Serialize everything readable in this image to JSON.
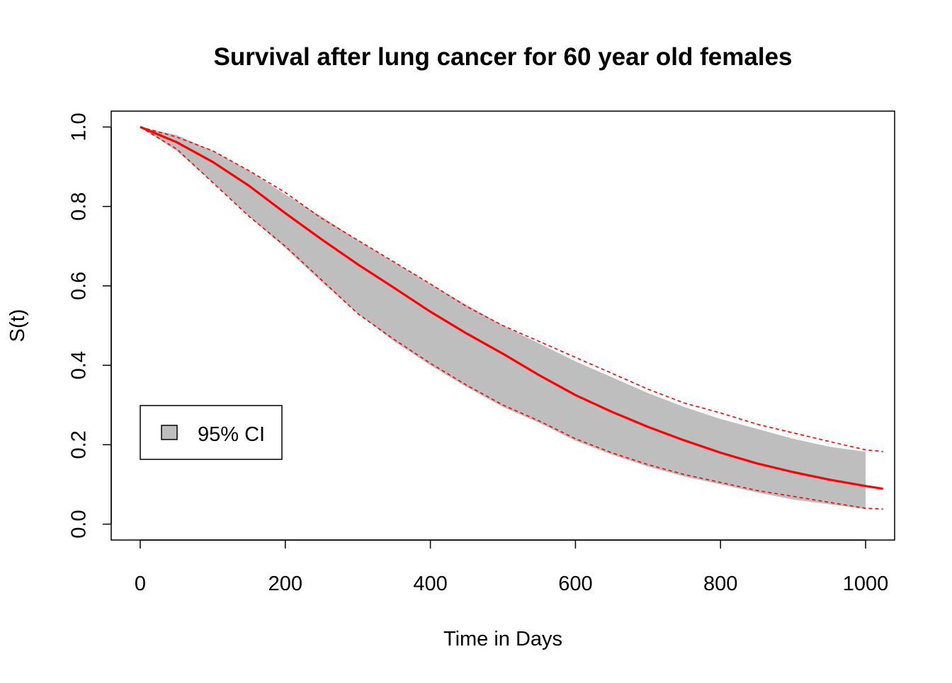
{
  "colors": {
    "curve": "#FF0000",
    "ci_fill": "#BEBEBE",
    "ci_lines": "#FF0000",
    "axis": "#000000",
    "background": "#FFFFFF"
  },
  "chart_data": {
    "type": "line",
    "title": "Survival after lung cancer for 60 year old females",
    "xlabel": "Time in Days",
    "ylabel": "S(t)",
    "xlim": [
      -40,
      1040
    ],
    "ylim": [
      -0.04,
      1.04
    ],
    "xticks": [
      0,
      200,
      400,
      600,
      800,
      1000
    ],
    "xtick_labels": [
      "0",
      "200",
      "400",
      "600",
      "800",
      "1000"
    ],
    "yticks": [
      0.0,
      0.2,
      0.4,
      0.6,
      0.8,
      1.0
    ],
    "ytick_labels": [
      "0.0",
      "0.2",
      "0.4",
      "0.6",
      "0.8",
      "1.0"
    ],
    "grid": false,
    "legend": {
      "position": "bottom-left",
      "entries": [
        {
          "label": "95% CI",
          "symbol": "filled-box"
        }
      ]
    },
    "x": [
      0,
      50,
      100,
      150,
      200,
      250,
      300,
      350,
      400,
      450,
      500,
      550,
      600,
      650,
      700,
      750,
      800,
      850,
      900,
      950,
      1000,
      1024
    ],
    "series": [
      {
        "name": "",
        "style": "solid",
        "values": [
          1.0,
          0.962,
          0.912,
          0.852,
          0.783,
          0.717,
          0.654,
          0.595,
          0.535,
          0.48,
          0.429,
          0.375,
          0.325,
          0.283,
          0.245,
          0.211,
          0.18,
          0.153,
          0.131,
          0.112,
          0.096,
          0.089
        ]
      },
      {
        "name": "",
        "style": "dashed",
        "values": [
          1.0,
          0.975,
          0.94,
          0.89,
          0.835,
          0.77,
          0.715,
          0.66,
          0.605,
          0.548,
          0.5,
          0.46,
          0.42,
          0.38,
          0.34,
          0.305,
          0.28,
          0.252,
          0.23,
          0.208,
          0.187,
          0.183
        ]
      },
      {
        "name": "",
        "style": "dashed",
        "values": [
          1.0,
          0.945,
          0.86,
          0.775,
          0.7,
          0.615,
          0.53,
          0.465,
          0.405,
          0.35,
          0.3,
          0.26,
          0.215,
          0.18,
          0.15,
          0.125,
          0.105,
          0.085,
          0.07,
          0.055,
          0.04,
          0.038
        ]
      }
    ],
    "ci_band": {
      "x": [
        0,
        50,
        100,
        150,
        200,
        250,
        300,
        350,
        400,
        450,
        500,
        550,
        600,
        650,
        700,
        750,
        800,
        850,
        900,
        950,
        1000
      ],
      "upper": [
        1.0,
        0.98,
        0.94,
        0.89,
        0.83,
        0.775,
        0.715,
        0.66,
        0.605,
        0.552,
        0.5,
        0.455,
        0.41,
        0.37,
        0.33,
        0.295,
        0.265,
        0.24,
        0.215,
        0.195,
        0.182
      ],
      "lower": [
        1.0,
        0.94,
        0.86,
        0.775,
        0.695,
        0.61,
        0.53,
        0.46,
        0.4,
        0.345,
        0.295,
        0.255,
        0.21,
        0.175,
        0.145,
        0.12,
        0.1,
        0.08,
        0.062,
        0.05,
        0.038
      ]
    }
  }
}
